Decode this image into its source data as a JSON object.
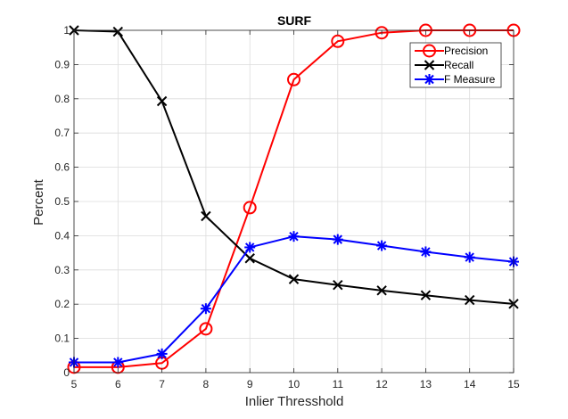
{
  "chart_data": {
    "type": "line",
    "title": "SURF",
    "xlabel": "Inlier Thresshold",
    "ylabel": "Percent",
    "xlim": [
      5,
      15
    ],
    "ylim": [
      0,
      1
    ],
    "x_ticks": [
      5,
      6,
      7,
      8,
      9,
      10,
      11,
      12,
      13,
      14,
      15
    ],
    "y_ticks": [
      0,
      0.1,
      0.2,
      0.3,
      0.4,
      0.5,
      0.6,
      0.7,
      0.8,
      0.9,
      1
    ],
    "grid": true,
    "legend_position": "top-right",
    "x": [
      5,
      6,
      7,
      8,
      9,
      10,
      11,
      12,
      13,
      14,
      15
    ],
    "series": [
      {
        "name": "Precision",
        "color": "#ff0000",
        "marker": "circle",
        "values": [
          0.016,
          0.016,
          0.028,
          0.128,
          0.482,
          0.856,
          0.968,
          0.993,
          1.0,
          1.0,
          1.0
        ]
      },
      {
        "name": "Recall",
        "color": "#000000",
        "marker": "x",
        "values": [
          1.0,
          0.996,
          0.793,
          0.457,
          0.334,
          0.273,
          0.256,
          0.24,
          0.226,
          0.212,
          0.201
        ]
      },
      {
        "name": "F Measure",
        "color": "#0000ff",
        "marker": "asterisk",
        "values": [
          0.03,
          0.03,
          0.055,
          0.187,
          0.366,
          0.398,
          0.389,
          0.371,
          0.353,
          0.337,
          0.324
        ]
      }
    ]
  }
}
